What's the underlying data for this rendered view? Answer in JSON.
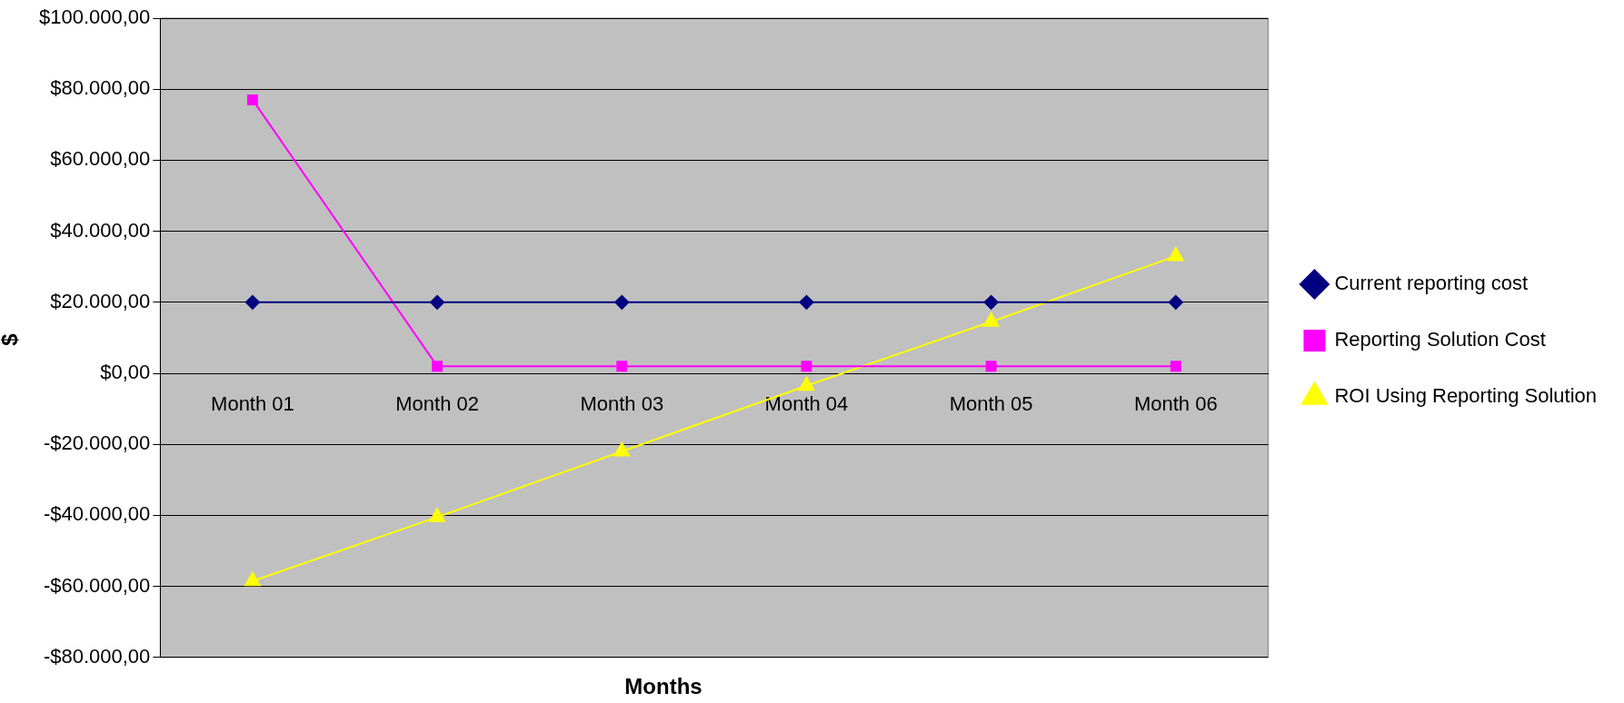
{
  "chart_data": {
    "type": "line",
    "xlabel": "Months",
    "ylabel": "$",
    "categories": [
      "Month 01",
      "Month 02",
      "Month 03",
      "Month 04",
      "Month 05",
      "Month 06"
    ],
    "series": [
      {
        "name": "Current reporting cost",
        "color": "#000080",
        "marker": "diamond",
        "values": [
          20000,
          20000,
          20000,
          20000,
          20000,
          20000
        ]
      },
      {
        "name": "Reporting Solution Cost",
        "color": "#ff00ff",
        "marker": "square",
        "values": [
          77000,
          2000,
          2000,
          2000,
          2000,
          2000
        ]
      },
      {
        "name": "ROI Using Reporting Solution",
        "color": "#ffff00",
        "marker": "triangle",
        "values": [
          -58500,
          -40500,
          -22000,
          -3500,
          14500,
          33000
        ]
      }
    ],
    "ylim": [
      -80000,
      100000
    ],
    "yticks": [
      {
        "value": -80000,
        "label": "-$80.000,00"
      },
      {
        "value": -60000,
        "label": "-$60.000,00"
      },
      {
        "value": -40000,
        "label": "-$40.000,00"
      },
      {
        "value": -20000,
        "label": "-$20.000,00"
      },
      {
        "value": 0,
        "label": "$0,00"
      },
      {
        "value": 20000,
        "label": "$20.000,00"
      },
      {
        "value": 40000,
        "label": "$40.000,00"
      },
      {
        "value": 60000,
        "label": "$60.000,00"
      },
      {
        "value": 80000,
        "label": "$80.000,00"
      },
      {
        "value": 100000,
        "label": "$100.000,00"
      }
    ],
    "grid": "y",
    "legend": "right",
    "line_style": "solid"
  }
}
